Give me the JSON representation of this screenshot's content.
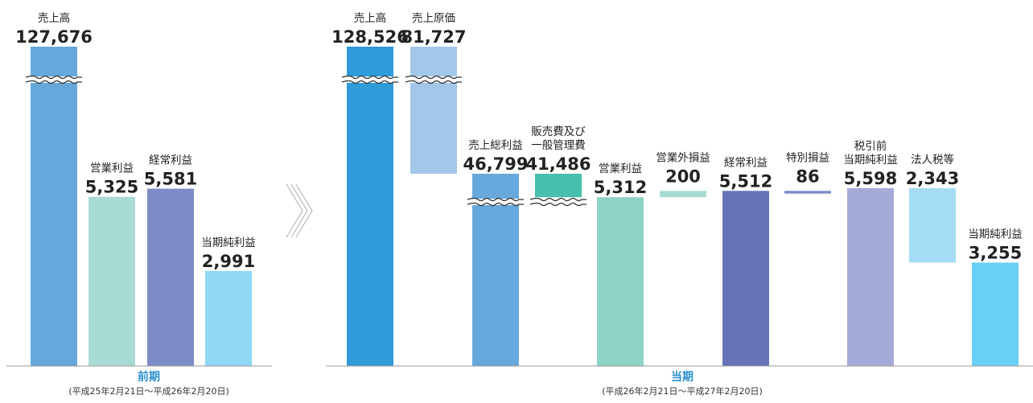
{
  "chart_data": [
    {
      "type": "bar",
      "period_label": "前期",
      "period_range": "(平成25年2月21日〜平成26年2月20日)",
      "categories": [
        "売上高",
        "営業利益",
        "経常利益",
        "当期純利益"
      ],
      "values": [
        127676,
        5325,
        5581,
        2991
      ],
      "value_labels": [
        "127,676",
        "5,325",
        "5,581",
        "2,991"
      ],
      "colors": [
        "#66a8dc",
        "#a9dbd5",
        "#7d8cc6",
        "#8fd8f4"
      ],
      "broken_axis": [
        true,
        false,
        false,
        false
      ]
    },
    {
      "type": "bar",
      "subtype": "waterfall",
      "period_label": "当期",
      "period_range": "(平成26年2月21日〜平成27年2月20日)",
      "categories": [
        "売上高",
        "売上原価",
        "売上総利益",
        "販売費及び一般管理費",
        "営業利益",
        "営業外損益",
        "経常利益",
        "特別損益",
        "税引前当期純利益",
        "法人税等",
        "当期純利益"
      ],
      "category_lines": [
        [
          "売上高"
        ],
        [
          "売上原価"
        ],
        [
          "売上総利益"
        ],
        [
          "販売費及び",
          "一般管理費"
        ],
        [
          "営業利益"
        ],
        [
          "営業外損益"
        ],
        [
          "経常利益"
        ],
        [
          "特別損益"
        ],
        [
          "税引前",
          "当期純利益"
        ],
        [
          "法人税等"
        ],
        [
          "当期純利益"
        ]
      ],
      "values": [
        128526,
        81727,
        46799,
        41486,
        5312,
        200,
        5512,
        86,
        5598,
        2343,
        3255
      ],
      "value_labels": [
        "128,526",
        "81,727",
        "46,799",
        "41,486",
        "5,312",
        "200",
        "5,512",
        "86",
        "5,598",
        "2,343",
        "3,255"
      ],
      "colors": [
        "#2f9bd8",
        "#a3c7ea",
        "#66a8dc",
        "#46bfad",
        "#8dd3c6",
        "#a9dbd5",
        "#6874b8",
        "#7d8cc6",
        "#a6aad8",
        "#a3dcf4",
        "#6acff4"
      ],
      "broken_axis": [
        true,
        true,
        true,
        true,
        false,
        false,
        false,
        false,
        false,
        false,
        false
      ]
    }
  ],
  "arrow_icon": "double-chevron-right-icon"
}
